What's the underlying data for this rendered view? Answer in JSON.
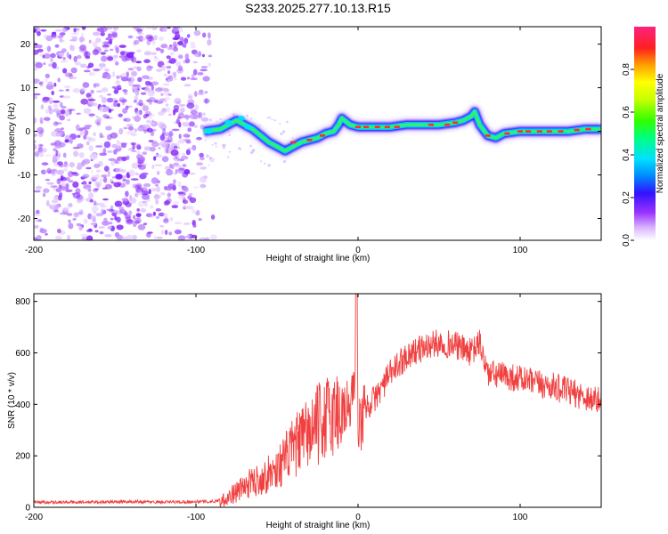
{
  "title": "S233.2025.277.10.13.R15",
  "chart_data": [
    {
      "type": "heatmap",
      "name": "spectrogram",
      "xlabel": "Height of straight line (km)",
      "ylabel": "Frequency (Hz)",
      "xlim": [
        -200,
        150
      ],
      "ylim": [
        -25,
        24
      ],
      "xticks": [
        -200,
        -100,
        0,
        100
      ],
      "yticks": [
        -20,
        -10,
        0,
        10,
        20
      ],
      "colorbar": {
        "label": "Normalized spectral amplitude",
        "range": [
          0,
          1
        ],
        "ticks": [
          "0.0",
          "0.2",
          "0.4",
          "0.6",
          "0.8"
        ]
      },
      "ridge": {
        "x": [
          -95,
          -85,
          -75,
          -65,
          -55,
          -50,
          -45,
          -40,
          -35,
          -30,
          -25,
          -20,
          -15,
          -12,
          -10,
          -5,
          0,
          10,
          20,
          30,
          40,
          50,
          60,
          65,
          70,
          72,
          75,
          80,
          85,
          90,
          100,
          110,
          120,
          130,
          140,
          150
        ],
        "y": [
          0.0,
          0.5,
          2.5,
          0.5,
          -2.5,
          -3.5,
          -4.5,
          -3.5,
          -2.5,
          -2.0,
          -1.5,
          -0.5,
          0.0,
          1.5,
          3.0,
          1.5,
          1.0,
          1.0,
          1.0,
          1.5,
          1.5,
          1.5,
          2.0,
          2.5,
          3.5,
          4.5,
          1.5,
          -1.0,
          -1.5,
          -0.5,
          0.0,
          0.0,
          0.0,
          0.0,
          0.5,
          0.5
        ]
      },
      "noise_region": {
        "x_from": -200,
        "x_to": -88
      }
    },
    {
      "type": "line",
      "name": "snr",
      "xlabel": "Height of straight line (km)",
      "ylabel": "SNR (10 * v/v)",
      "xlim": [
        -200,
        150
      ],
      "ylim": [
        0,
        830
      ],
      "xticks": [
        -200,
        -100,
        0,
        100
      ],
      "yticks": [
        0,
        200,
        400,
        600,
        800
      ],
      "color": "#f04040",
      "series": [
        {
          "name": "SNR",
          "x": [
            -200,
            -180,
            -160,
            -140,
            -120,
            -100,
            -90,
            -85,
            -80,
            -75,
            -70,
            -65,
            -60,
            -55,
            -50,
            -45,
            -40,
            -35,
            -30,
            -25,
            -20,
            -15,
            -10,
            -5,
            -3,
            -2,
            -1,
            0,
            5,
            10,
            15,
            20,
            30,
            40,
            50,
            60,
            70,
            75,
            80,
            90,
            100,
            110,
            120,
            130,
            140,
            150
          ],
          "y": [
            20,
            20,
            20,
            22,
            20,
            22,
            22,
            28,
            40,
            60,
            80,
            100,
            110,
            130,
            150,
            190,
            230,
            260,
            290,
            320,
            345,
            360,
            380,
            390,
            420,
            560,
            830,
            300,
            390,
            420,
            470,
            520,
            590,
            620,
            640,
            630,
            600,
            640,
            520,
            510,
            500,
            480,
            470,
            450,
            430,
            410
          ]
        }
      ]
    }
  ]
}
